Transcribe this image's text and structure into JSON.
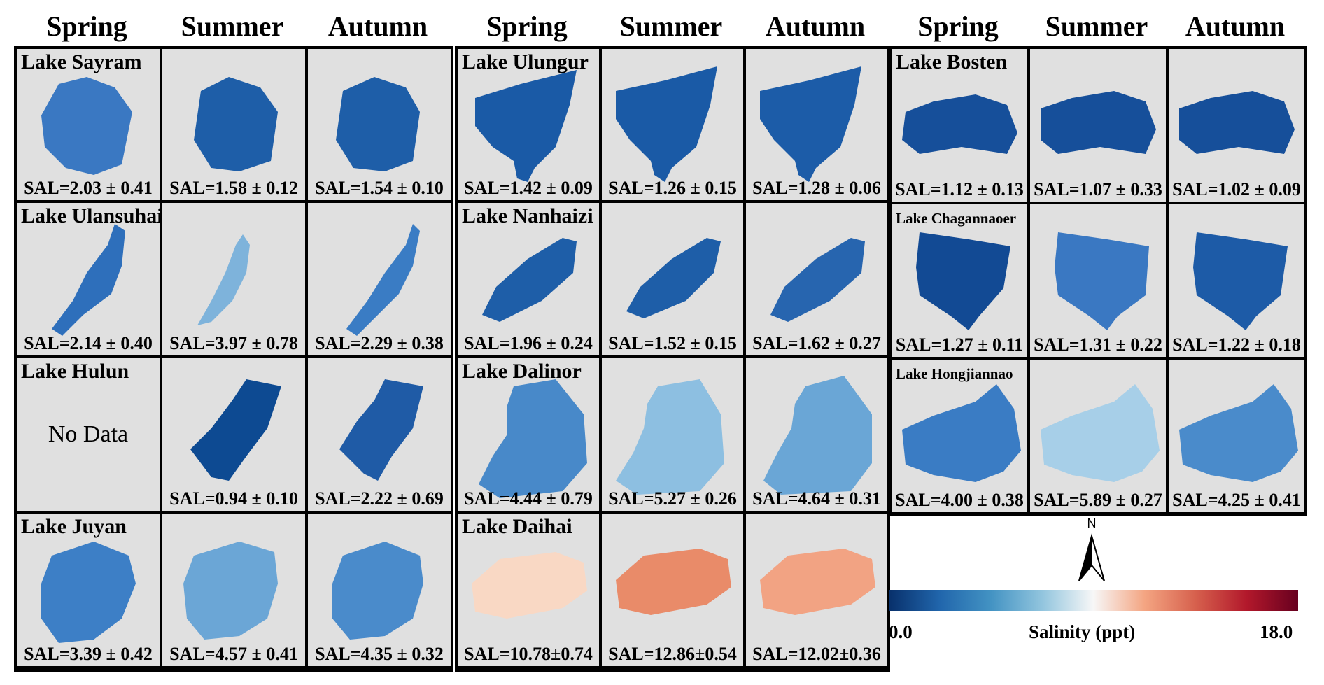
{
  "headers": {
    "groups": [
      [
        "Spring",
        "Summer",
        "Autumn"
      ],
      [
        "Spring",
        "Summer",
        "Autumn"
      ],
      [
        "Spring",
        "Summer",
        "Autumn"
      ]
    ]
  },
  "panels": [
    {
      "lakes": [
        {
          "name": "Lake Sayram",
          "seasons": [
            "SAL=2.03 ± 0.41",
            "SAL=1.58 ± 0.12",
            "SAL=1.54 ± 0.10"
          ]
        },
        {
          "name": "Lake Ulansuhai",
          "seasons": [
            "SAL=2.14 ± 0.40",
            "SAL=3.97 ± 0.78",
            "SAL=2.29 ± 0.38"
          ]
        },
        {
          "name": "Lake Hulun",
          "seasons": [
            "",
            "SAL=0.94 ± 0.10",
            "SAL=2.22 ± 0.69"
          ]
        },
        {
          "name": "Lake Juyan",
          "seasons": [
            "SAL=3.39 ± 0.42",
            "SAL=4.57 ± 0.41",
            "SAL=4.35 ± 0.32"
          ]
        }
      ]
    },
    {
      "lakes": [
        {
          "name": "Lake Ulungur",
          "seasons": [
            "SAL=1.42 ± 0.09",
            "SAL=1.26 ± 0.15",
            "SAL=1.28 ± 0.06"
          ]
        },
        {
          "name": "Lake Nanhaizi",
          "seasons": [
            "SAL=1.96 ± 0.24",
            "SAL=1.52 ± 0.15",
            "SAL=1.62 ± 0.27"
          ]
        },
        {
          "name": "Lake Dalinor",
          "seasons": [
            "SAL=4.44 ± 0.79",
            "SAL=5.27 ± 0.26",
            "SAL=4.64 ± 0.31"
          ]
        },
        {
          "name": "Lake Daihai",
          "seasons": [
            "SAL=10.78±0.74",
            "SAL=12.86±0.54",
            "SAL=12.02±0.36"
          ]
        }
      ]
    },
    {
      "lakes": [
        {
          "name": "Lake Bosten",
          "seasons": [
            "SAL=1.12 ± 0.13",
            "SAL=1.07 ± 0.33",
            "SAL=1.02 ± 0.09"
          ]
        },
        {
          "name": "Lake Chagannaoer",
          "seasons": [
            "SAL=1.27 ± 0.11",
            "SAL=1.31 ± 0.22",
            "SAL=1.22 ± 0.18"
          ]
        },
        {
          "name": "Lake Hongjiannao",
          "seasons": [
            "SAL=4.00 ± 0.38",
            "SAL=5.89 ± 0.27",
            "SAL=4.25 ± 0.41"
          ]
        }
      ]
    }
  ],
  "no_data_text": "No Data",
  "north_label": "N",
  "colorbar": {
    "min_label": "0.0",
    "max_label": "18.0",
    "title": "Salinity (ppt)",
    "min": 0,
    "max": 18,
    "colors": [
      "#08306b",
      "#2166ac",
      "#4393c3",
      "#92c5de",
      "#f7f7f7",
      "#f4a582",
      "#d6604d",
      "#b2182b",
      "#67001f"
    ]
  }
}
